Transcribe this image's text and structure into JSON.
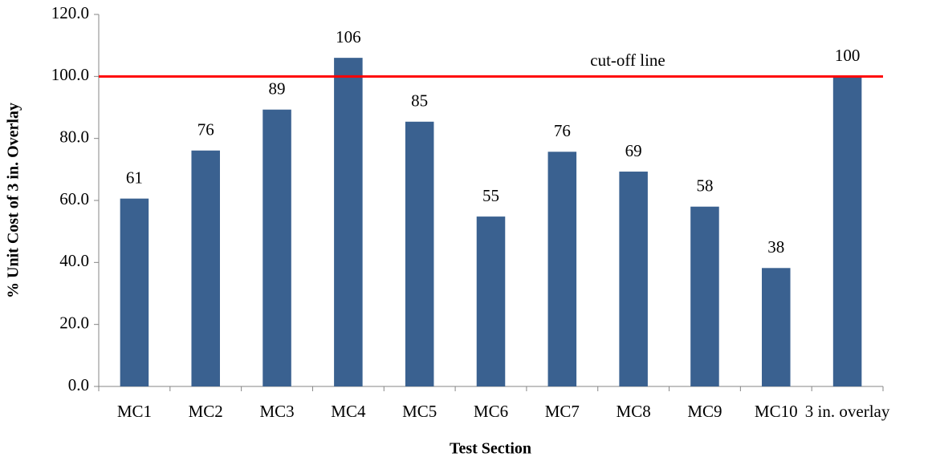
{
  "chart_data": {
    "type": "bar",
    "y_label": "% Unit Cost of 3 in. Overlay",
    "x_label": "Test Section",
    "categories": [
      "MC1",
      "MC2",
      "MC3",
      "MC4",
      "MC5",
      "MC6",
      "MC7",
      "MC8",
      "MC9",
      "MC10",
      "3 in. overlay"
    ],
    "values": [
      60.6,
      76.1,
      89.3,
      106.0,
      85.4,
      54.8,
      75.7,
      69.3,
      58.0,
      38.2,
      100.0
    ],
    "value_labels": [
      "61",
      "76",
      "89",
      "106",
      "85",
      "55",
      "76",
      "69",
      "58",
      "38",
      "100"
    ],
    "color": "#3a6190",
    "ylim": [
      0,
      120
    ],
    "yticks": [
      {
        "value": 0,
        "label": "0.0"
      },
      {
        "value": 20,
        "label": "20.0"
      },
      {
        "value": 40,
        "label": "40.0"
      },
      {
        "value": 60,
        "label": "60.0"
      },
      {
        "value": 80,
        "label": "80.0"
      },
      {
        "value": 100,
        "label": "100.0"
      },
      {
        "value": 120,
        "label": "120.0"
      }
    ],
    "reference_line": {
      "value": 100,
      "label": "cut-off line",
      "color": "#ff0000"
    },
    "grid": false
  }
}
